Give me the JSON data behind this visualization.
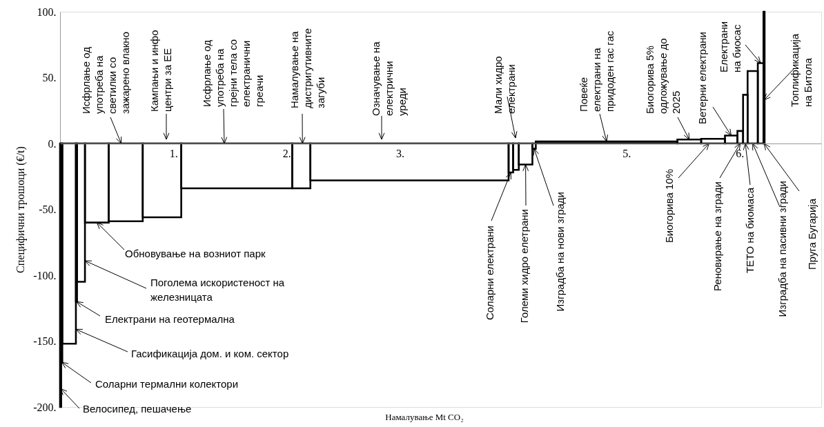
{
  "chart_data": {
    "type": "bar",
    "xlabel": "Намалување Mt CO₂",
    "ylabel": "Специфични трошоци (€/t)",
    "x": [
      0.005,
      0.015,
      0.08,
      0.145,
      0.185,
      0.325,
      0.58,
      0.9,
      1.56,
      2.13,
      3.085,
      3.98,
      4.025,
      4.11,
      4.185,
      4.825,
      5.555,
      5.765,
      5.925,
      6.005,
      6.05,
      6.115,
      6.185,
      6.215
    ],
    "values": [
      -200,
      -166,
      -152,
      -120,
      -105,
      -60,
      -59,
      -56,
      -34,
      -34,
      -28,
      -22,
      -20,
      -16,
      -4,
      1.5,
      3,
      3.5,
      6,
      9.5,
      37,
      55,
      61,
      100
    ],
    "color": "#000000",
    "xlim": [
      0,
      6.72
    ],
    "ylim": [
      -200,
      100
    ],
    "xticks": [
      {
        "value": 0,
        "label": null
      },
      {
        "value": 1,
        "label": "1."
      },
      {
        "value": 2,
        "label": "2."
      },
      {
        "value": 3,
        "label": "3."
      },
      {
        "value": 5,
        "label": "5."
      },
      {
        "value": 6,
        "label": "6."
      }
    ],
    "yticks": [
      {
        "value": -200,
        "label": "-200."
      },
      {
        "value": -150,
        "label": "-150."
      },
      {
        "value": -100,
        "label": "-100."
      },
      {
        "value": -50,
        "label": "-50."
      },
      {
        "value": 0,
        "label": "0."
      },
      {
        "value": 50,
        "label": "50."
      },
      {
        "value": 100,
        "label": "100."
      }
    ],
    "annotations": [
      {
        "text": "Исфрлање од\nупотреба на\nсветилки со\nзажарено влакно",
        "x": 0.54,
        "y": 0
      },
      "Кампањи и инфо\nцентри за ЕЕ",
      {
        "text": "Исфрлање од\nупотреба на\nгрејни тела со\nелектранични\nгреачи",
        "x": 1.45,
        "y": 0
      },
      {
        "text": "Намалување на\nдистригутивните\nзагуби",
        "x": 2.14,
        "y": 0
      },
      "Означување на\nелектрични\nуреди",
      "Мали хидро\nелектрани",
      {
        "text": "Повеќе\nелектрани на\nпридоден гас гас",
        "x": 4.825,
        "y": 1.5
      },
      {
        "text": "Биогорива 5%\nодложување до\n2025",
        "x": 5.555,
        "y": 3
      },
      {
        "text": "Ветерни електрани",
        "x": 5.925,
        "y": 6
      },
      {
        "text": "Електрани\nна биосас",
        "x": 6.185,
        "y": 61
      },
      {
        "text": "Топлификација\nна Битола",
        "x": 6.215,
        "y": 33
      },
      {
        "text": "Соларни електрани",
        "x": 3.98,
        "y": -22
      },
      {
        "text": "Големи хидро елетрани",
        "x": 4.11,
        "y": -16
      },
      {
        "text": "Изградба на нови згради",
        "x": 4.185,
        "y": -4
      },
      {
        "text": "Биогорива 10%",
        "x": 5.73,
        "y": 0
      },
      {
        "text": "Реновирање на згради",
        "x": 6.005,
        "y": 0
      },
      {
        "text": "ТЕТО на биомаса",
        "x": 6.05,
        "y": 0
      },
      {
        "text": "Изградба на пасивни згради",
        "x": 6.115,
        "y": 0
      },
      {
        "text": "Пруга Бугарија",
        "x": 6.215,
        "y": 0
      },
      {
        "text": "Обновување на возниот парк",
        "x": 0.325,
        "y": -60
      },
      {
        "text": "Поголема искористеност на\nжелезницата",
        "x": 0.22,
        "y": -89
      },
      {
        "text": "Електрани на геотермална",
        "x": 0.145,
        "y": -120
      },
      {
        "text": "Гасификација дом. и ком. сектор",
        "x": 0.14,
        "y": -141
      },
      {
        "text": "Соларни термални колектори",
        "x": 0.015,
        "y": -166
      },
      {
        "text": "Велосипед, пешачење",
        "x": 0.005,
        "y": -186
      }
    ]
  }
}
